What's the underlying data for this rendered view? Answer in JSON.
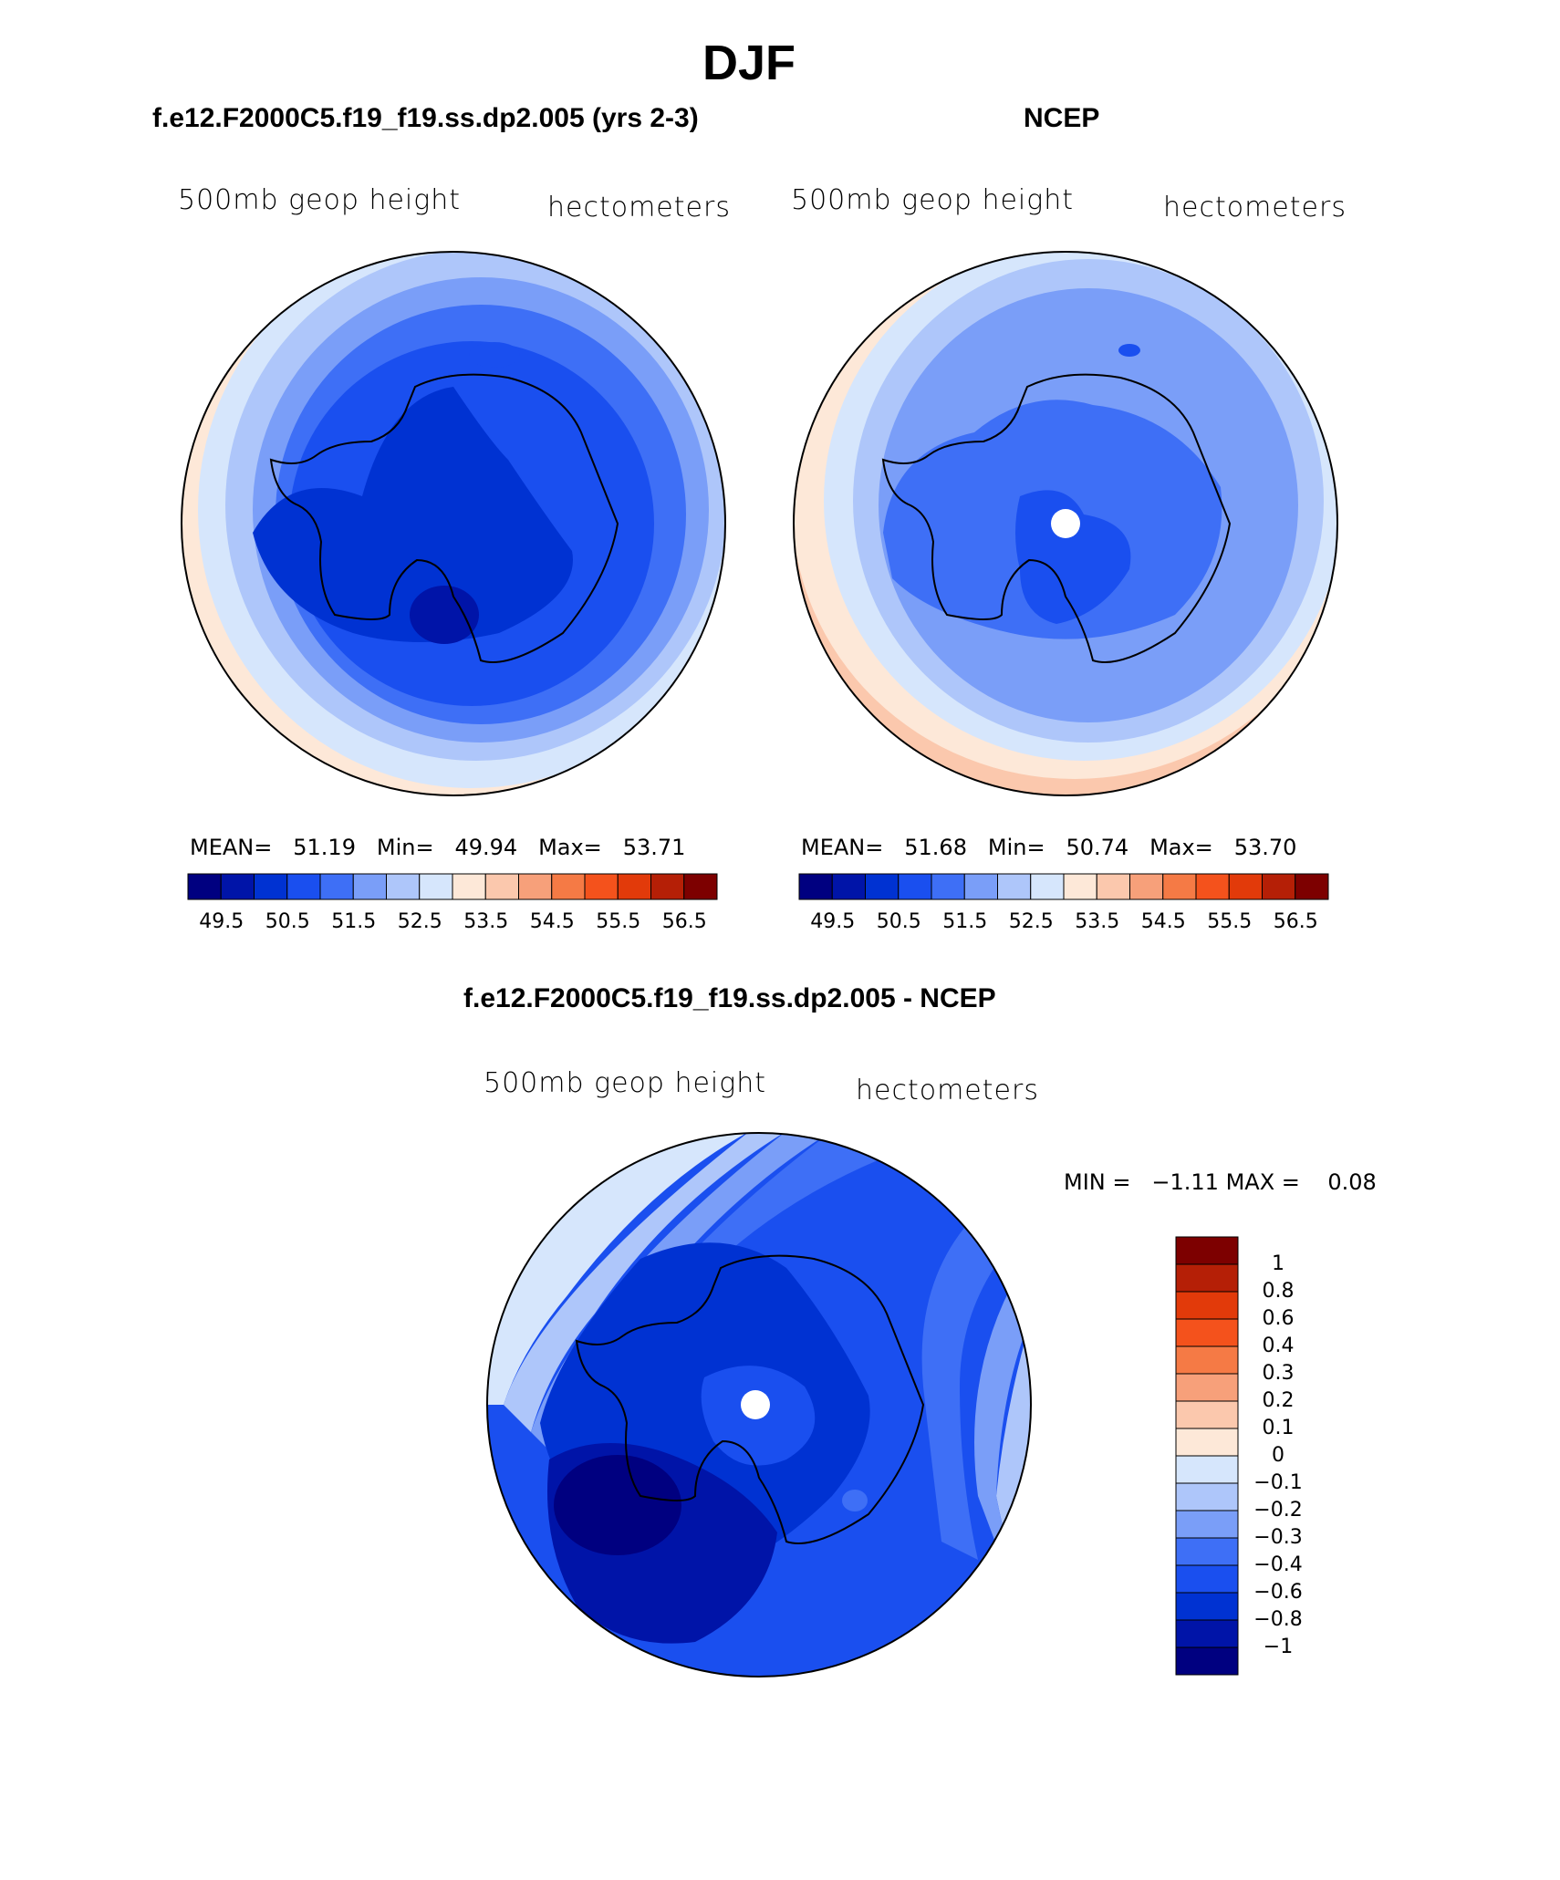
{
  "figure": {
    "title": "DJF"
  },
  "panels": [
    {
      "id": "model",
      "title": "f.e12.F2000C5.f19_f19.ss.dp2.005 (yrs 2-3)",
      "left_label": "500mb geop height",
      "right_label": "hectometers",
      "stats": {
        "mean_label": "MEAN=",
        "mean": "51.19",
        "min_label": "Min=",
        "min": "49.94",
        "max_label": "Max=",
        "max": "53.71"
      }
    },
    {
      "id": "obs",
      "title": "NCEP",
      "left_label": "500mb geop height",
      "right_label": "hectometers",
      "stats": {
        "mean_label": "MEAN=",
        "mean": "51.68",
        "min_label": "Min=",
        "min": "50.74",
        "max_label": "Max=",
        "max": "53.70"
      }
    },
    {
      "id": "diff",
      "title": "f.e12.F2000C5.f19_f19.ss.dp2.005 - NCEP",
      "left_label": "500mb geop height",
      "right_label": "hectometers",
      "stats": {
        "min_label": "MIN =",
        "min": "−1.11",
        "max_label": "MAX =",
        "max": "0.08"
      }
    }
  ],
  "colorbars": {
    "absolute": {
      "colors": [
        "#000080",
        "#0014a8",
        "#0032d2",
        "#1a4fef",
        "#3e6ff6",
        "#7a9ef8",
        "#aec6fa",
        "#d6e6fc",
        "#fde8d8",
        "#fbc8ad",
        "#f7a07a",
        "#f57a45",
        "#f4521c",
        "#e23a0a",
        "#b51f06",
        "#7d0000"
      ],
      "labels": [
        "49.5",
        "50.5",
        "51.5",
        "52.5",
        "53.5",
        "54.5",
        "55.5",
        "56.5"
      ]
    },
    "difference": {
      "colors": [
        "#000080",
        "#0014a8",
        "#0032d2",
        "#1a4fef",
        "#3e6ff6",
        "#7a9ef8",
        "#aec6fa",
        "#d6e6fc",
        "#fde8d8",
        "#fbc8ad",
        "#f7a07a",
        "#f57a45",
        "#f4521c",
        "#e23a0a",
        "#b51f06",
        "#7d0000"
      ],
      "labels": [
        "1",
        "0.8",
        "0.6",
        "0.4",
        "0.3",
        "0.2",
        "0.1",
        "0",
        "−0.1",
        "−0.2",
        "−0.3",
        "−0.4",
        "−0.6",
        "−0.8",
        "−1"
      ]
    }
  }
}
